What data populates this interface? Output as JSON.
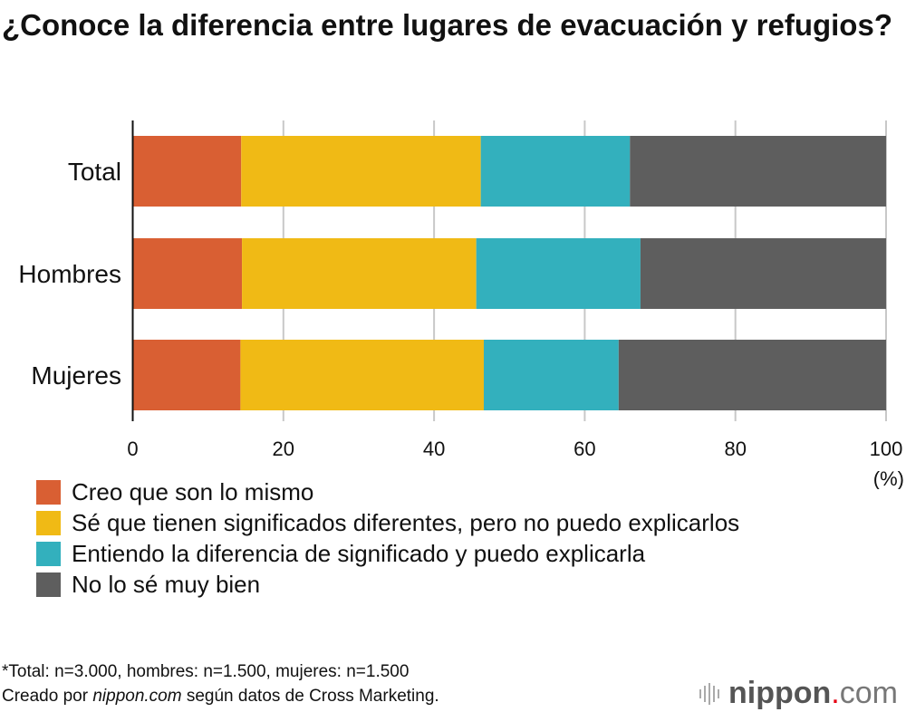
{
  "title": "¿Conoce la diferencia entre lugares de evacuación y refugios?",
  "chart_data": {
    "type": "bar",
    "orientation": "horizontal",
    "stacked": true,
    "categories": [
      "Total",
      "Hombres",
      "Mujeres"
    ],
    "series": [
      {
        "name": "Creo que son lo mismo",
        "color": "#d95f33",
        "values": [
          14.4,
          14.5,
          14.3
        ]
      },
      {
        "name": "Sé que tienen significados diferentes, pero no puedo explicarlos",
        "color": "#f0ba15",
        "values": [
          31.8,
          31.1,
          32.3
        ]
      },
      {
        "name": "Entiendo la diferencia de significado y puedo explicarla",
        "color": "#33b0bd",
        "values": [
          19.8,
          21.8,
          17.9
        ]
      },
      {
        "name": "No lo sé muy bien",
        "color": "#5e5e5e",
        "values": [
          34.0,
          32.6,
          35.5
        ]
      }
    ],
    "xlim": [
      0,
      100
    ],
    "xticks": [
      "0",
      "20",
      "40",
      "60",
      "80",
      "100"
    ],
    "xunit": "(%)",
    "grid": true,
    "legend": "bottom"
  },
  "notes": {
    "sample": "*Total: n=3.000, hombres: n=1.500, mujeres: n=1.500",
    "source_prefix": "Creado por ",
    "source_site": "nippon.com",
    "source_suffix": " según datos de Cross Marketing."
  },
  "logo": {
    "name": "nippon",
    "dot": ".",
    "tld": "com"
  }
}
